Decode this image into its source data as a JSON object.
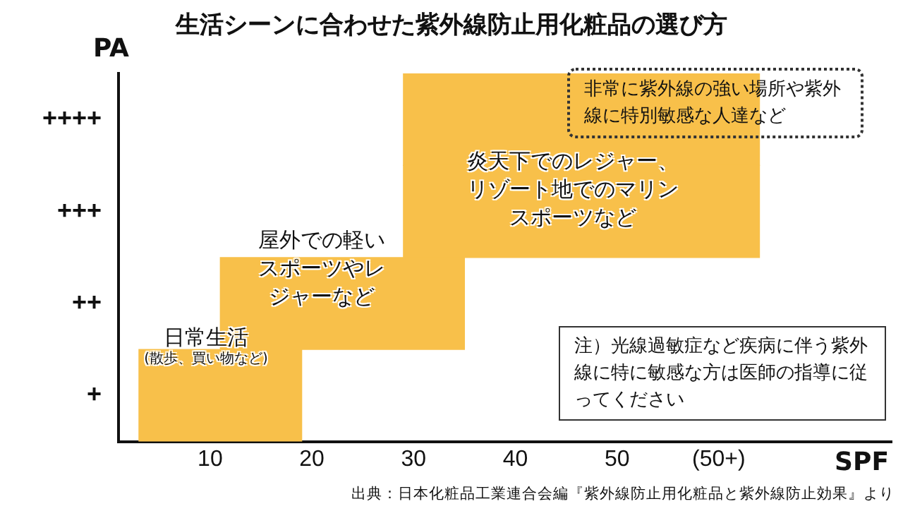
{
  "chart_data": {
    "type": "bar",
    "orientation": "horizontal",
    "title": "生活シーンに合わせた紫外線防止用化粧品の選び方",
    "xlabel": "SPF",
    "ylabel": "PA",
    "categories": [
      "++++",
      "+++",
      "++",
      "+"
    ],
    "base": [
      29,
      29,
      11,
      3
    ],
    "values": [
      35,
      35,
      24,
      16
    ],
    "color": "#f8c04a",
    "xlim": [
      1,
      77
    ],
    "xticks": [
      10,
      20,
      30,
      40,
      50,
      {
        "value": 60,
        "label": "(50+)"
      }
    ],
    "grid": false,
    "legend": false,
    "annotations": [
      "日常生活",
      "(散歩、買い物など)",
      "屋外での軽いスポーツやレジャーなど",
      "炎天下でのレジャー、リゾート地でのマリンスポーツなど",
      "非常に紫外線の強い場所や紫外線に特別敏感な人達など",
      "注）光線過敏症など疾病に伴う紫外線に特に敏感な方は医師の指導に従ってください",
      "出典：日本化粧品工業連合会編『紫外線防止用化粧品と紫外線防止効果』より"
    ]
  }
}
